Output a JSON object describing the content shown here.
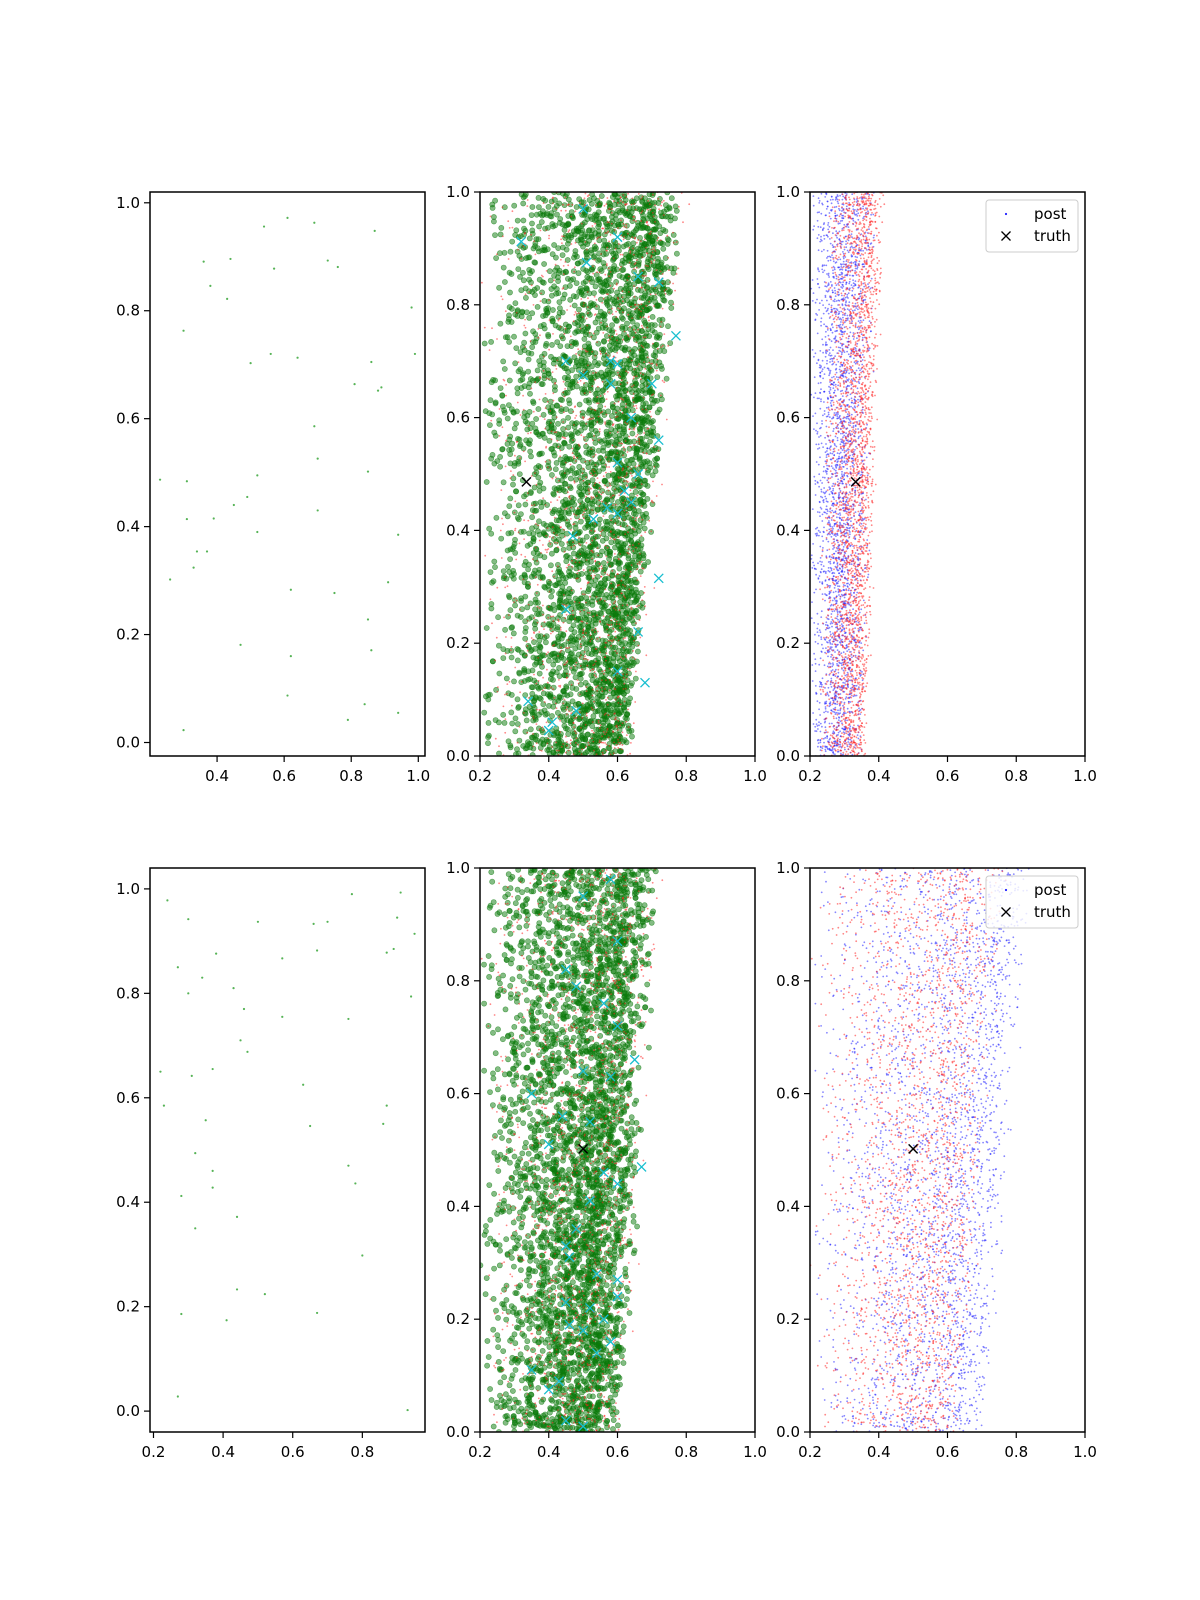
{
  "figure": {
    "type": "scatter_grid",
    "rows": 2,
    "cols": 3
  },
  "colors": {
    "light_green": "#2ca02c",
    "dark_green": "#0a7a0a",
    "red": "#ff2222",
    "blue": "#2222ff",
    "cyan": "#17becf",
    "black": "#000000",
    "axis": "#000000"
  },
  "legend": {
    "entries": [
      "post",
      "truth"
    ],
    "placement": "top-right"
  },
  "chart_data": [
    {
      "type": "scatter",
      "panel": "row1-col1",
      "title": "",
      "xlabel": "",
      "ylabel": "",
      "xlim": [
        0.2,
        1.02
      ],
      "ylim": [
        -0.025,
        1.02
      ],
      "xticks": [
        "0.4",
        "0.6",
        "0.8",
        "1.0"
      ],
      "yticks": [
        "0.0",
        "0.2",
        "0.4",
        "0.6",
        "0.8",
        "1.0"
      ],
      "series": [
        {
          "marker": "dot",
          "color": "#2ca02c",
          "values": [
            [
              0.54,
              0.956
            ],
            [
              0.61,
              0.972
            ],
            [
              0.69,
              0.963
            ],
            [
              0.87,
              0.948
            ],
            [
              0.36,
              0.891
            ],
            [
              0.44,
              0.896
            ],
            [
              0.57,
              0.878
            ],
            [
              0.73,
              0.893
            ],
            [
              0.76,
              0.881
            ],
            [
              0.38,
              0.846
            ],
            [
              0.43,
              0.822
            ],
            [
              0.98,
              0.806
            ],
            [
              0.3,
              0.763
            ],
            [
              0.56,
              0.72
            ],
            [
              0.64,
              0.713
            ],
            [
              0.5,
              0.703
            ],
            [
              0.86,
              0.705
            ],
            [
              0.99,
              0.72
            ],
            [
              0.88,
              0.652
            ],
            [
              0.81,
              0.664
            ],
            [
              0.89,
              0.658
            ],
            [
              0.69,
              0.586
            ],
            [
              0.7,
              0.526
            ],
            [
              0.23,
              0.487
            ],
            [
              0.31,
              0.484
            ],
            [
              0.52,
              0.495
            ],
            [
              0.85,
              0.502
            ],
            [
              0.49,
              0.455
            ],
            [
              0.45,
              0.44
            ],
            [
              0.7,
              0.43
            ],
            [
              0.31,
              0.414
            ],
            [
              0.39,
              0.415
            ],
            [
              0.52,
              0.39
            ],
            [
              0.94,
              0.385
            ],
            [
              0.34,
              0.354
            ],
            [
              0.37,
              0.354
            ],
            [
              0.33,
              0.324
            ],
            [
              0.26,
              0.302
            ],
            [
              0.91,
              0.297
            ],
            [
              0.62,
              0.283
            ],
            [
              0.75,
              0.277
            ],
            [
              0.85,
              0.228
            ],
            [
              0.47,
              0.181
            ],
            [
              0.86,
              0.171
            ],
            [
              0.62,
              0.16
            ],
            [
              0.61,
              0.087
            ],
            [
              0.84,
              0.071
            ],
            [
              0.94,
              0.055
            ],
            [
              0.79,
              0.042
            ],
            [
              0.3,
              0.023
            ]
          ]
        }
      ]
    },
    {
      "type": "scatter",
      "panel": "row1-col2",
      "title": "",
      "xlabel": "",
      "ylabel": "",
      "xlim": [
        0.2,
        1.0
      ],
      "ylim": [
        0.0,
        1.0
      ],
      "xticks": [
        "0.2",
        "0.4",
        "0.6",
        "0.8",
        "1.0"
      ],
      "yticks": [
        "0.0",
        "0.2",
        "0.4",
        "0.6",
        "0.8",
        "1.0"
      ],
      "series": [
        {
          "marker": "large-circle",
          "color": "#0a7a0a",
          "count": 3500,
          "x_left_at_y0": 0.2,
          "x_left_at_y1": 0.2,
          "x_right_at_y0": 0.64,
          "x_right_at_y1": 0.8,
          "x_peak_at_y0": 0.6,
          "x_peak_at_y1": 0.72
        },
        {
          "marker": "dot",
          "color": "#ff2222",
          "count": 1500,
          "x_left_at_y0": 0.2,
          "x_left_at_y1": 0.2,
          "x_right_at_y0": 0.66,
          "x_right_at_y1": 0.82,
          "x_peak_at_y0": 0.58,
          "x_peak_at_y1": 0.7
        },
        {
          "marker": "x",
          "color": "#17becf",
          "values": [
            [
              0.32,
              0.912
            ],
            [
              0.5,
              0.97
            ],
            [
              0.51,
              0.875
            ],
            [
              0.6,
              0.92
            ],
            [
              0.66,
              0.85
            ],
            [
              0.72,
              0.84
            ],
            [
              0.77,
              0.745
            ],
            [
              0.45,
              0.7
            ],
            [
              0.5,
              0.675
            ],
            [
              0.58,
              0.7
            ],
            [
              0.6,
              0.695
            ],
            [
              0.58,
              0.66
            ],
            [
              0.7,
              0.66
            ],
            [
              0.64,
              0.6
            ],
            [
              0.72,
              0.56
            ],
            [
              0.6,
              0.52
            ],
            [
              0.66,
              0.5
            ],
            [
              0.62,
              0.47
            ],
            [
              0.64,
              0.45
            ],
            [
              0.57,
              0.44
            ],
            [
              0.6,
              0.43
            ],
            [
              0.53,
              0.42
            ],
            [
              0.47,
              0.39
            ],
            [
              0.72,
              0.315
            ],
            [
              0.45,
              0.26
            ],
            [
              0.66,
              0.22
            ],
            [
              0.6,
              0.15
            ],
            [
              0.68,
              0.13
            ],
            [
              0.34,
              0.097
            ],
            [
              0.48,
              0.08
            ],
            [
              0.41,
              0.06
            ],
            [
              0.4,
              0.045
            ]
          ]
        },
        {
          "marker": "x",
          "color": "#000000",
          "values": [
            [
              0.335,
              0.486
            ]
          ]
        }
      ]
    },
    {
      "type": "scatter",
      "panel": "row1-col3",
      "title": "",
      "xlabel": "",
      "ylabel": "",
      "xlim": [
        0.2,
        1.0
      ],
      "ylim": [
        0.0,
        1.0
      ],
      "xticks": [
        "0.2",
        "0.4",
        "0.6",
        "0.8",
        "1.0"
      ],
      "yticks": [
        "0.0",
        "0.2",
        "0.4",
        "0.6",
        "0.8",
        "1.0"
      ],
      "legend": [
        "post",
        "truth"
      ],
      "series": [
        {
          "name": "post",
          "marker": "dot",
          "color": "#2222ff",
          "count": 2500,
          "x_left_at_y0": 0.2,
          "x_left_at_y1": 0.2,
          "x_right_at_y0": 0.36,
          "x_right_at_y1": 0.4,
          "x_peak_at_y0": 0.28,
          "x_peak_at_y1": 0.3
        },
        {
          "marker": "dot",
          "color": "#ff2222",
          "count": 2500,
          "x_left_at_y0": 0.22,
          "x_left_at_y1": 0.25,
          "x_right_at_y0": 0.37,
          "x_right_at_y1": 0.42,
          "x_peak_at_y0": 0.33,
          "x_peak_at_y1": 0.37
        },
        {
          "name": "truth",
          "marker": "x",
          "color": "#000000",
          "values": [
            [
              0.333,
              0.486
            ]
          ]
        }
      ]
    },
    {
      "type": "scatter",
      "panel": "row2-col1",
      "title": "",
      "xlabel": "",
      "ylabel": "",
      "xlim": [
        0.19,
        0.98
      ],
      "ylim": [
        -0.04,
        1.04
      ],
      "xticks": [
        "0.2",
        "0.4",
        "0.6",
        "0.8"
      ],
      "yticks": [
        "0.0",
        "0.2",
        "0.4",
        "0.6",
        "0.8",
        "1.0"
      ],
      "series": [
        {
          "marker": "dot",
          "color": "#2ca02c",
          "values": [
            [
              0.24,
              0.978
            ],
            [
              0.3,
              0.942
            ],
            [
              0.5,
              0.937
            ],
            [
              0.66,
              0.933
            ],
            [
              0.7,
              0.937
            ],
            [
              0.77,
              0.99
            ],
            [
              0.91,
              0.993
            ],
            [
              0.9,
              0.945
            ],
            [
              0.95,
              0.914
            ],
            [
              0.27,
              0.85
            ],
            [
              0.3,
              0.8
            ],
            [
              0.34,
              0.83
            ],
            [
              0.38,
              0.876
            ],
            [
              0.43,
              0.81
            ],
            [
              0.46,
              0.77
            ],
            [
              0.57,
              0.867
            ],
            [
              0.67,
              0.882
            ],
            [
              0.87,
              0.878
            ],
            [
              0.89,
              0.885
            ],
            [
              0.94,
              0.794
            ],
            [
              0.57,
              0.755
            ],
            [
              0.76,
              0.751
            ],
            [
              0.45,
              0.71
            ],
            [
              0.47,
              0.688
            ],
            [
              0.22,
              0.65
            ],
            [
              0.31,
              0.642
            ],
            [
              0.37,
              0.655
            ],
            [
              0.63,
              0.625
            ],
            [
              0.23,
              0.585
            ],
            [
              0.87,
              0.585
            ],
            [
              0.35,
              0.557
            ],
            [
              0.65,
              0.546
            ],
            [
              0.86,
              0.55
            ],
            [
              0.32,
              0.494
            ],
            [
              0.37,
              0.46
            ],
            [
              0.37,
              0.428
            ],
            [
              0.76,
              0.47
            ],
            [
              0.78,
              0.436
            ],
            [
              0.28,
              0.412
            ],
            [
              0.44,
              0.372
            ],
            [
              0.32,
              0.35
            ],
            [
              0.8,
              0.298
            ],
            [
              0.44,
              0.233
            ],
            [
              0.52,
              0.224
            ],
            [
              0.28,
              0.186
            ],
            [
              0.67,
              0.188
            ],
            [
              0.41,
              0.174
            ],
            [
              0.27,
              0.028
            ],
            [
              0.93,
              0.002
            ]
          ]
        }
      ]
    },
    {
      "type": "scatter",
      "panel": "row2-col2",
      "title": "",
      "xlabel": "",
      "ylabel": "",
      "xlim": [
        0.2,
        1.0
      ],
      "ylim": [
        0.0,
        1.0
      ],
      "xticks": [
        "0.2",
        "0.4",
        "0.6",
        "0.8",
        "1.0"
      ],
      "yticks": [
        "0.0",
        "0.2",
        "0.4",
        "0.6",
        "0.8",
        "1.0"
      ],
      "series": [
        {
          "marker": "large-circle",
          "color": "#0a7a0a",
          "count": 3500,
          "x_left_at_y0": 0.2,
          "x_left_at_y1": 0.2,
          "x_right_at_y0": 0.62,
          "x_right_at_y1": 0.73,
          "x_peak_at_y0": 0.52,
          "x_peak_at_y1": 0.62
        },
        {
          "marker": "dot",
          "color": "#ff2222",
          "count": 1500,
          "x_left_at_y0": 0.2,
          "x_left_at_y1": 0.2,
          "x_right_at_y0": 0.63,
          "x_right_at_y1": 0.74,
          "x_peak_at_y0": 0.52,
          "x_peak_at_y1": 0.62
        },
        {
          "marker": "x",
          "color": "#17becf",
          "values": [
            [
              0.5,
              0.95
            ],
            [
              0.58,
              0.98
            ],
            [
              0.6,
              0.87
            ],
            [
              0.45,
              0.82
            ],
            [
              0.48,
              0.79
            ],
            [
              0.56,
              0.76
            ],
            [
              0.6,
              0.72
            ],
            [
              0.65,
              0.66
            ],
            [
              0.5,
              0.64
            ],
            [
              0.58,
              0.63
            ],
            [
              0.35,
              0.6
            ],
            [
              0.44,
              0.56
            ],
            [
              0.52,
              0.55
            ],
            [
              0.4,
              0.51
            ],
            [
              0.56,
              0.46
            ],
            [
              0.67,
              0.47
            ],
            [
              0.6,
              0.44
            ],
            [
              0.52,
              0.41
            ],
            [
              0.48,
              0.36
            ],
            [
              0.45,
              0.33
            ],
            [
              0.46,
              0.31
            ],
            [
              0.54,
              0.28
            ],
            [
              0.6,
              0.27
            ],
            [
              0.6,
              0.24
            ],
            [
              0.45,
              0.23
            ],
            [
              0.52,
              0.22
            ],
            [
              0.56,
              0.2
            ],
            [
              0.46,
              0.19
            ],
            [
              0.5,
              0.18
            ],
            [
              0.58,
              0.16
            ],
            [
              0.54,
              0.14
            ],
            [
              0.35,
              0.11
            ],
            [
              0.43,
              0.09
            ],
            [
              0.4,
              0.075
            ],
            [
              0.45,
              0.02
            ],
            [
              0.5,
              0.01
            ]
          ]
        },
        {
          "marker": "x",
          "color": "#000000",
          "values": [
            [
              0.5,
              0.502
            ]
          ]
        }
      ]
    },
    {
      "type": "scatter",
      "panel": "row2-col3",
      "title": "",
      "xlabel": "",
      "ylabel": "",
      "xlim": [
        0.2,
        1.0
      ],
      "ylim": [
        0.0,
        1.0
      ],
      "xticks": [
        "0.2",
        "0.4",
        "0.6",
        "0.8",
        "1.0"
      ],
      "yticks": [
        "0.0",
        "0.2",
        "0.4",
        "0.6",
        "0.8",
        "1.0"
      ],
      "legend": [
        "post",
        "truth"
      ],
      "series": [
        {
          "name": "post",
          "marker": "dot",
          "color": "#2222ff",
          "count": 2800,
          "x_left_at_y0": 0.2,
          "x_left_at_y1": 0.2,
          "x_right_at_y0": 0.72,
          "x_right_at_y1": 0.86,
          "x_peak_at_y0": 0.62,
          "x_peak_at_y1": 0.78
        },
        {
          "marker": "dot",
          "color": "#ff2222",
          "count": 2200,
          "x_left_at_y0": 0.2,
          "x_left_at_y1": 0.2,
          "x_right_at_y0": 0.65,
          "x_right_at_y1": 0.78,
          "x_peak_at_y0": 0.56,
          "x_peak_at_y1": 0.66
        },
        {
          "name": "truth",
          "marker": "x",
          "color": "#000000",
          "values": [
            [
              0.5,
              0.502
            ]
          ]
        }
      ]
    }
  ]
}
